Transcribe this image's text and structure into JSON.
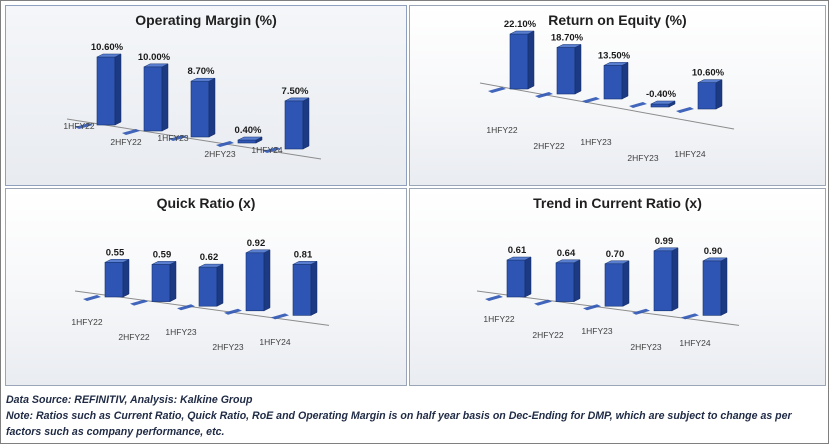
{
  "chart_data": [
    {
      "type": "bar",
      "title": "Operating Margin (%)",
      "categories": [
        "1HFY22",
        "2HFY22",
        "1HFY23",
        "2HFY23",
        "1HFY24"
      ],
      "values": [
        10.6,
        10.0,
        8.7,
        0.4,
        7.5
      ],
      "data_labels": [
        "10.60%",
        "10.00%",
        "8.70%",
        "0.40%",
        "7.50%"
      ],
      "ylim": [
        0,
        12
      ]
    },
    {
      "type": "bar",
      "title": "Return on Equity (%)",
      "categories": [
        "1HFY22",
        "2HFY22",
        "1HFY23",
        "2HFY23",
        "1HFY24"
      ],
      "values": [
        22.1,
        18.7,
        13.5,
        -0.4,
        10.6
      ],
      "data_labels": [
        "22.10%",
        "18.70%",
        "13.50%",
        "-0.40%",
        "10.60%"
      ],
      "ylim": [
        -1,
        24
      ]
    },
    {
      "type": "bar",
      "title": "Quick Ratio (x)",
      "categories": [
        "1HFY22",
        "2HFY22",
        "1HFY23",
        "2HFY23",
        "1HFY24"
      ],
      "values": [
        0.55,
        0.59,
        0.62,
        0.92,
        0.81
      ],
      "data_labels": [
        "0.55",
        "0.59",
        "0.62",
        "0.92",
        "0.81"
      ],
      "ylim": [
        0,
        1
      ]
    },
    {
      "type": "bar",
      "title": "Trend in Current Ratio (x)",
      "categories": [
        "1HFY22",
        "2HFY22",
        "1HFY23",
        "2HFY23",
        "1HFY24"
      ],
      "values": [
        0.61,
        0.64,
        0.7,
        0.99,
        0.9
      ],
      "data_labels": [
        "0.61",
        "0.64",
        "0.70",
        "0.99",
        "0.90"
      ],
      "ylim": [
        0,
        1.1
      ]
    }
  ],
  "colors": {
    "bar_front": "#2e55b4",
    "bar_side": "#1c3a84",
    "bar_top": "#5a7fd0"
  },
  "footer": {
    "source": "Data Source: REFINITIV, Analysis: Kalkine Group",
    "note": "Note: Ratios such as Current Ratio, Quick Ratio, RoE and Operating Margin is on half year basis on Dec-Ending for DMP, which are subject to change as per factors such as company performance, etc."
  }
}
